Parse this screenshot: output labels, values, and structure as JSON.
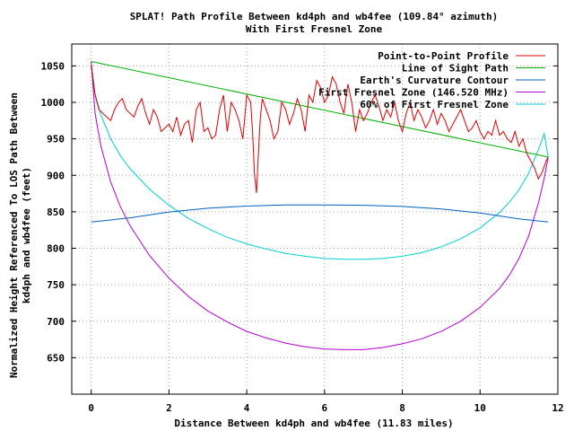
{
  "chart_data": {
    "type": "line",
    "title": "SPLAT! Path Profile Between kd4ph and wb4fee (109.84° azimuth)",
    "subtitle": "With First Fresnel Zone",
    "xlabel": "Distance Between kd4ph and wb4fee (11.83 miles)",
    "ylabel_line1": "Normalized Height Referenced To LOS Path Between",
    "ylabel_line2": "kd4ph and wb4fee (feet)",
    "xlim": [
      -0.5,
      12
    ],
    "ylim": [
      600,
      1080
    ],
    "xticks": [
      0,
      2,
      4,
      6,
      8,
      10,
      12
    ],
    "yticks": [
      650,
      700,
      750,
      800,
      850,
      900,
      950,
      1000,
      1050
    ],
    "grid": true,
    "legend_position": "top-right",
    "series": [
      {
        "name": "Point-to-Point Profile",
        "color": "#e00000",
        "x": [
          0,
          0.1,
          0.2,
          0.3,
          0.4,
          0.5,
          0.6,
          0.7,
          0.8,
          0.9,
          1.0,
          1.1,
          1.2,
          1.3,
          1.4,
          1.5,
          1.6,
          1.7,
          1.8,
          1.9,
          2.0,
          2.1,
          2.2,
          2.3,
          2.4,
          2.5,
          2.6,
          2.7,
          2.8,
          2.9,
          3.0,
          3.1,
          3.2,
          3.3,
          3.4,
          3.5,
          3.6,
          3.7,
          3.8,
          3.9,
          4.0,
          4.1,
          4.15,
          4.2,
          4.25,
          4.3,
          4.35,
          4.4,
          4.5,
          4.6,
          4.7,
          4.8,
          4.9,
          5.0,
          5.1,
          5.2,
          5.3,
          5.4,
          5.5,
          5.6,
          5.7,
          5.8,
          5.9,
          6.0,
          6.1,
          6.2,
          6.3,
          6.4,
          6.5,
          6.6,
          6.7,
          6.8,
          6.9,
          7.0,
          7.1,
          7.2,
          7.3,
          7.4,
          7.5,
          7.6,
          7.7,
          7.8,
          7.9,
          8.0,
          8.1,
          8.2,
          8.3,
          8.4,
          8.5,
          8.6,
          8.7,
          8.8,
          8.9,
          9.0,
          9.1,
          9.2,
          9.3,
          9.4,
          9.5,
          9.6,
          9.7,
          9.8,
          9.9,
          10.0,
          10.1,
          10.2,
          10.3,
          10.4,
          10.5,
          10.6,
          10.7,
          10.8,
          10.9,
          11.0,
          11.1,
          11.2,
          11.3,
          11.4,
          11.5,
          11.6,
          11.7,
          11.75
        ],
        "values": [
          1050,
          1010,
          990,
          985,
          980,
          975,
          990,
          1000,
          1005,
          990,
          985,
          980,
          995,
          1005,
          985,
          970,
          990,
          980,
          960,
          965,
          970,
          960,
          980,
          955,
          970,
          975,
          945,
          990,
          1000,
          960,
          965,
          950,
          955,
          990,
          1010,
          960,
          1000,
          990,
          975,
          950,
          1010,
          1000,
          960,
          900,
          876,
          930,
          980,
          1005,
          990,
          975,
          950,
          960,
          1000,
          990,
          970,
          985,
          1005,
          990,
          960,
          1010,
          1000,
          1030,
          1020,
          1000,
          1010,
          1035,
          1025,
          1000,
          985,
          1025,
          1000,
          960,
          990,
          975,
          985,
          1000,
          1010,
          995,
          975,
          990,
          980,
          1000,
          975,
          960,
          985,
          1000,
          975,
          990,
          980,
          965,
          975,
          990,
          970,
          985,
          975,
          960,
          970,
          980,
          990,
          975,
          960,
          965,
          975,
          960,
          950,
          960,
          955,
          975,
          955,
          960,
          950,
          945,
          960,
          940,
          950,
          930,
          920,
          910,
          895,
          905,
          920,
          925
        ]
      },
      {
        "name": "Line of Sight Path",
        "color": "#00b000",
        "x": [
          0,
          11.75
        ],
        "values": [
          1056,
          925
        ]
      },
      {
        "name": "Earth's Curvature Contour",
        "color": "#0060c0",
        "x": [
          0,
          1,
          2,
          3,
          4,
          5,
          5.875,
          7,
          8,
          9,
          10,
          11,
          11.75
        ],
        "values": [
          836,
          841.7,
          849.7,
          854.9,
          857.9,
          859.3,
          859.5,
          859.0,
          857.3,
          853.9,
          848.3,
          840.4,
          836
        ]
      },
      {
        "name": "First Fresnel Zone (146.520 MHz)",
        "color": "#b000d0",
        "x": [
          0,
          0.1,
          0.25,
          0.5,
          0.75,
          1,
          1.5,
          2,
          2.5,
          3,
          3.5,
          4,
          4.5,
          5,
          5.5,
          6,
          6.5,
          7,
          7.5,
          8,
          8.5,
          9,
          9.5,
          10,
          10.5,
          10.75,
          11,
          11.25,
          11.5,
          11.65,
          11.75
        ],
        "values": [
          1056,
          985,
          940,
          891,
          857,
          831,
          790,
          759,
          734,
          714,
          699,
          686,
          677,
          670,
          665,
          662,
          661,
          661,
          664,
          669,
          676,
          686,
          700,
          719,
          745,
          763,
          786,
          817,
          862,
          896,
          925
        ]
      },
      {
        "name": "60% of First Fresnel Zone",
        "color": "#00d0d0",
        "x": [
          0,
          0.1,
          0.25,
          0.5,
          0.75,
          1,
          1.5,
          2,
          2.5,
          3,
          3.5,
          4,
          4.5,
          5,
          5.5,
          6,
          6.5,
          7,
          7.5,
          8,
          8.5,
          9,
          9.5,
          10,
          10.5,
          10.75,
          11,
          11.25,
          11.5,
          11.65,
          11.75
        ],
        "values": [
          1056,
          1012,
          983,
          950,
          927,
          909,
          881,
          859,
          841,
          827,
          815,
          806,
          799,
          793,
          789,
          786,
          785,
          785,
          786,
          789,
          794,
          802,
          813,
          828,
          849,
          863,
          880,
          903,
          935,
          957,
          925
        ]
      }
    ]
  }
}
